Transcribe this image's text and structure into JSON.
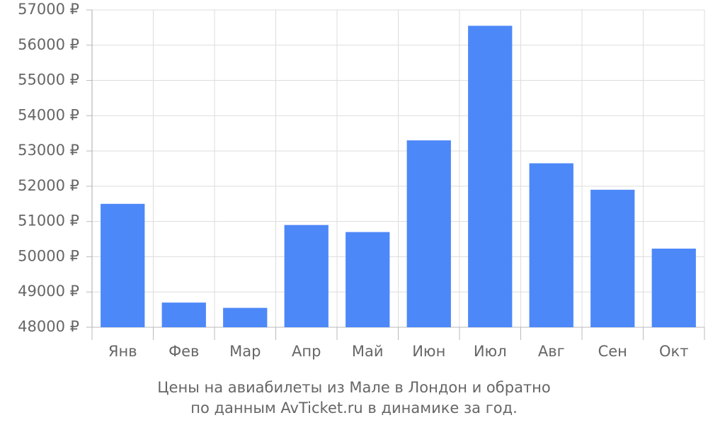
{
  "chart_data": {
    "type": "bar",
    "title": "Цены на авиабилеты из Мале в Лондон и обратно",
    "subtitle": "по данным AvTicket.ru в динамике за год.",
    "categories": [
      "Янв",
      "Фев",
      "Мар",
      "Апр",
      "Май",
      "Июн",
      "Июл",
      "Авг",
      "Сен",
      "Окт"
    ],
    "values": [
      51500,
      48700,
      48550,
      50900,
      50700,
      53300,
      56550,
      52650,
      51900,
      50230
    ],
    "color": "#4d88f9",
    "ylim": [
      48000,
      57000
    ],
    "yticks": [
      {
        "value": 48000,
        "label": "48000 ₽"
      },
      {
        "value": 49000,
        "label": "49000 ₽"
      },
      {
        "value": 50000,
        "label": "50000 ₽"
      },
      {
        "value": 51000,
        "label": "51000 ₽"
      },
      {
        "value": 52000,
        "label": "52000 ₽"
      },
      {
        "value": 53000,
        "label": "53000 ₽"
      },
      {
        "value": 54000,
        "label": "54000 ₽"
      },
      {
        "value": 55000,
        "label": "55000 ₽"
      },
      {
        "value": 56000,
        "label": "56000 ₽"
      },
      {
        "value": 57000,
        "label": "57000 ₽"
      }
    ],
    "grid": true
  }
}
